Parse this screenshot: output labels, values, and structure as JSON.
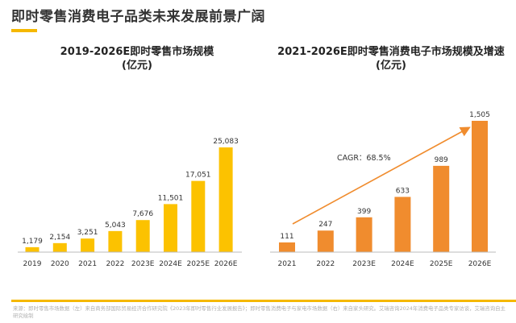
{
  "page": {
    "title": "即时零售消费电子品类未来发展前景广阔",
    "source": "来源：即时零售市场数据（左）来自商务部国际贸易经济合作研究院《2023年即时零售行业发展报告》；即时零售消费电子与家电市场数据（右）来自家头研究。艾瑞咨询2024年消费电子品类专家访谈，艾瑞咨询自主研究绘制"
  },
  "colors": {
    "accent": "#f5b800",
    "left_bars": "#fcc200",
    "right_bars": "#f08c2e"
  },
  "chart_data": [
    {
      "type": "bar",
      "title": "2019-2026E即时零售市场规模\n(亿元)",
      "categories": [
        "2019",
        "2020",
        "2021",
        "2022",
        "2023E",
        "2024E",
        "2025E",
        "2026E"
      ],
      "values": [
        1179,
        2154,
        3251,
        5043,
        7676,
        11501,
        17051,
        25083
      ],
      "value_labels": [
        "1,179",
        "2,154",
        "3,251",
        "5,043",
        "7,676",
        "11,501",
        "17,051",
        "25,083"
      ],
      "ylim": [
        0,
        25083
      ],
      "color": "#fcc200",
      "grid": false
    },
    {
      "type": "bar",
      "title": "2021-2026E即时零售消费电子市场规模及增速\n(亿元)",
      "categories": [
        "2021",
        "2022",
        "2023E",
        "2024E",
        "2025E",
        "2026E"
      ],
      "values": [
        111,
        247,
        399,
        633,
        989,
        1505
      ],
      "value_labels": [
        "111",
        "247",
        "399",
        "633",
        "989",
        "1,505"
      ],
      "ylim": [
        0,
        1505
      ],
      "color": "#f08c2e",
      "grid": false,
      "annotation": "CAGR：68.5%"
    }
  ]
}
